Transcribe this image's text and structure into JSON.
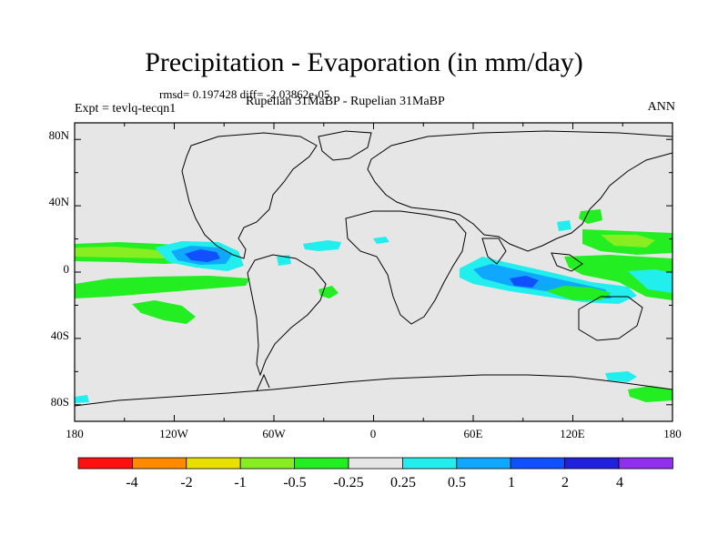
{
  "title": "Precipitation - Evaporation (in mm/day)",
  "stats": "rmsd= 0.197428 diff= -2.03862e-05",
  "experiment": "Expt = tevlq-tecqn1",
  "comparison": "Rupelian  31MaBP - Rupelian  31MaBP",
  "season": "ANN",
  "lat_ticks": [
    "80N",
    "40N",
    "0",
    "40S",
    "80S"
  ],
  "lon_ticks": [
    "180",
    "120W",
    "60W",
    "0",
    "60E",
    "120E",
    "180"
  ],
  "colorbar": {
    "labels": [
      "-4",
      "-2",
      "-1",
      "-0.5",
      "-0.25",
      "0.25",
      "0.5",
      "1",
      "2",
      "4"
    ],
    "colors": [
      "#ff1010",
      "#ff8a00",
      "#e8e000",
      "#88ee22",
      "#22ee22",
      "#e6e6e6",
      "#22eeee",
      "#10a8ff",
      "#1050ff",
      "#2020dd",
      "#9030ee"
    ]
  },
  "colors": {
    "land_ocean": "#e6e6e6",
    "teal": "#22eeee",
    "light_blue": "#10a8ff",
    "blue": "#1050ff",
    "green": "#22ee22",
    "light_green": "#88ee22"
  }
}
